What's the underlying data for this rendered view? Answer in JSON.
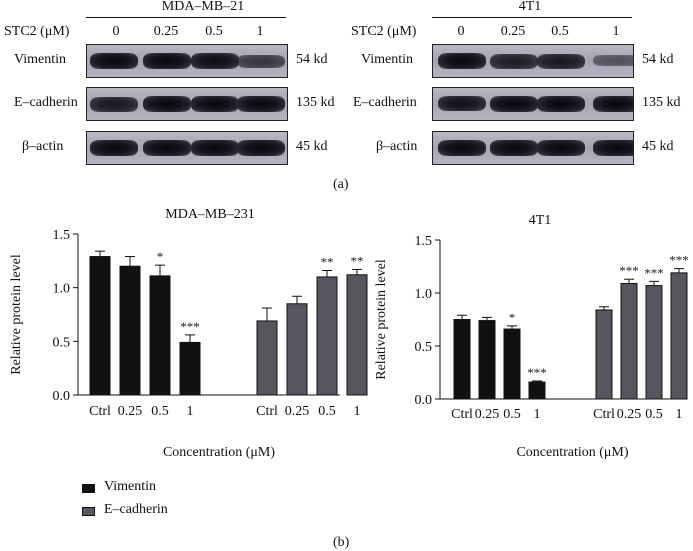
{
  "panel_a": {
    "label": "(a)",
    "blots": [
      {
        "cell_line": "MDA–MB–21",
        "treatment_label": "STC2 (μM)",
        "lanes": [
          "0",
          "0.25",
          "0.5",
          "1"
        ],
        "rows": [
          {
            "protein": "Vimentin",
            "size": "54 kd",
            "intensity": [
              1.0,
              1.0,
              0.95,
              0.55
            ]
          },
          {
            "protein": "E–cadherin",
            "size": "135 kd",
            "intensity": [
              0.85,
              1.0,
              1.0,
              1.0
            ]
          },
          {
            "protein": "β–actin",
            "size": "45 kd",
            "intensity": [
              1.0,
              1.0,
              1.0,
              1.0
            ]
          }
        ]
      },
      {
        "cell_line": "4T1",
        "treatment_label": "STC2 (μM)",
        "lanes": [
          "0",
          "0.25",
          "0.5",
          "1"
        ],
        "rows": [
          {
            "protein": "Vimentin",
            "size": "54 kd",
            "intensity": [
              1.0,
              0.8,
              0.85,
              0.3
            ]
          },
          {
            "protein": "E–cadherin",
            "size": "135 kd",
            "intensity": [
              0.9,
              1.0,
              1.0,
              1.0
            ]
          },
          {
            "protein": "β–actin",
            "size": "45 kd",
            "intensity": [
              1.0,
              1.0,
              1.0,
              1.0
            ]
          }
        ]
      }
    ]
  },
  "panel_b": {
    "label": "(b)",
    "legend": [
      {
        "name": "Vimentin",
        "color": "#111111"
      },
      {
        "name": "E–cadherin",
        "color": "#56575e"
      }
    ]
  },
  "chart_data": [
    {
      "type": "bar",
      "title": "MDA–MB–231",
      "xlabel": "Concentration (μM)",
      "ylabel": "Relative protein level",
      "ylim": [
        0,
        1.5
      ],
      "yticks": [
        "0.0",
        "0.5",
        "1.0",
        "1.5"
      ],
      "categories": [
        "Ctrl",
        "0.25",
        "0.5",
        "1"
      ],
      "series": [
        {
          "name": "Vimentin",
          "color": "#111111",
          "values": [
            1.29,
            1.2,
            1.11,
            0.49
          ],
          "errors": [
            0.05,
            0.09,
            0.1,
            0.07
          ],
          "significance": [
            "",
            "",
            "*",
            "***"
          ]
        },
        {
          "name": "E–cadherin",
          "color": "#56575e",
          "values": [
            0.69,
            0.85,
            1.1,
            1.12
          ],
          "errors": [
            0.12,
            0.07,
            0.06,
            0.05
          ],
          "significance": [
            "",
            "",
            "**",
            "**"
          ]
        }
      ],
      "grid": false,
      "legend": "bottom-left"
    },
    {
      "type": "bar",
      "title": "4T1",
      "xlabel": "Concentration (μM)",
      "ylabel": "Relative protein level",
      "ylim": [
        0,
        1.5
      ],
      "yticks": [
        "0.0",
        "0.5",
        "1.0",
        "1.5"
      ],
      "categories": [
        "Ctrl",
        "0.25",
        "0.5",
        "1"
      ],
      "series": [
        {
          "name": "Vimentin",
          "color": "#111111",
          "values": [
            0.75,
            0.74,
            0.66,
            0.16
          ],
          "errors": [
            0.04,
            0.03,
            0.03,
            0.01
          ],
          "significance": [
            "",
            "",
            "*",
            "***"
          ]
        },
        {
          "name": "E–cadherin",
          "color": "#56575e",
          "values": [
            0.84,
            1.09,
            1.07,
            1.19
          ],
          "errors": [
            0.03,
            0.04,
            0.04,
            0.04
          ],
          "significance": [
            "",
            "***",
            "***",
            "***"
          ]
        }
      ],
      "grid": false,
      "legend": "none"
    }
  ]
}
